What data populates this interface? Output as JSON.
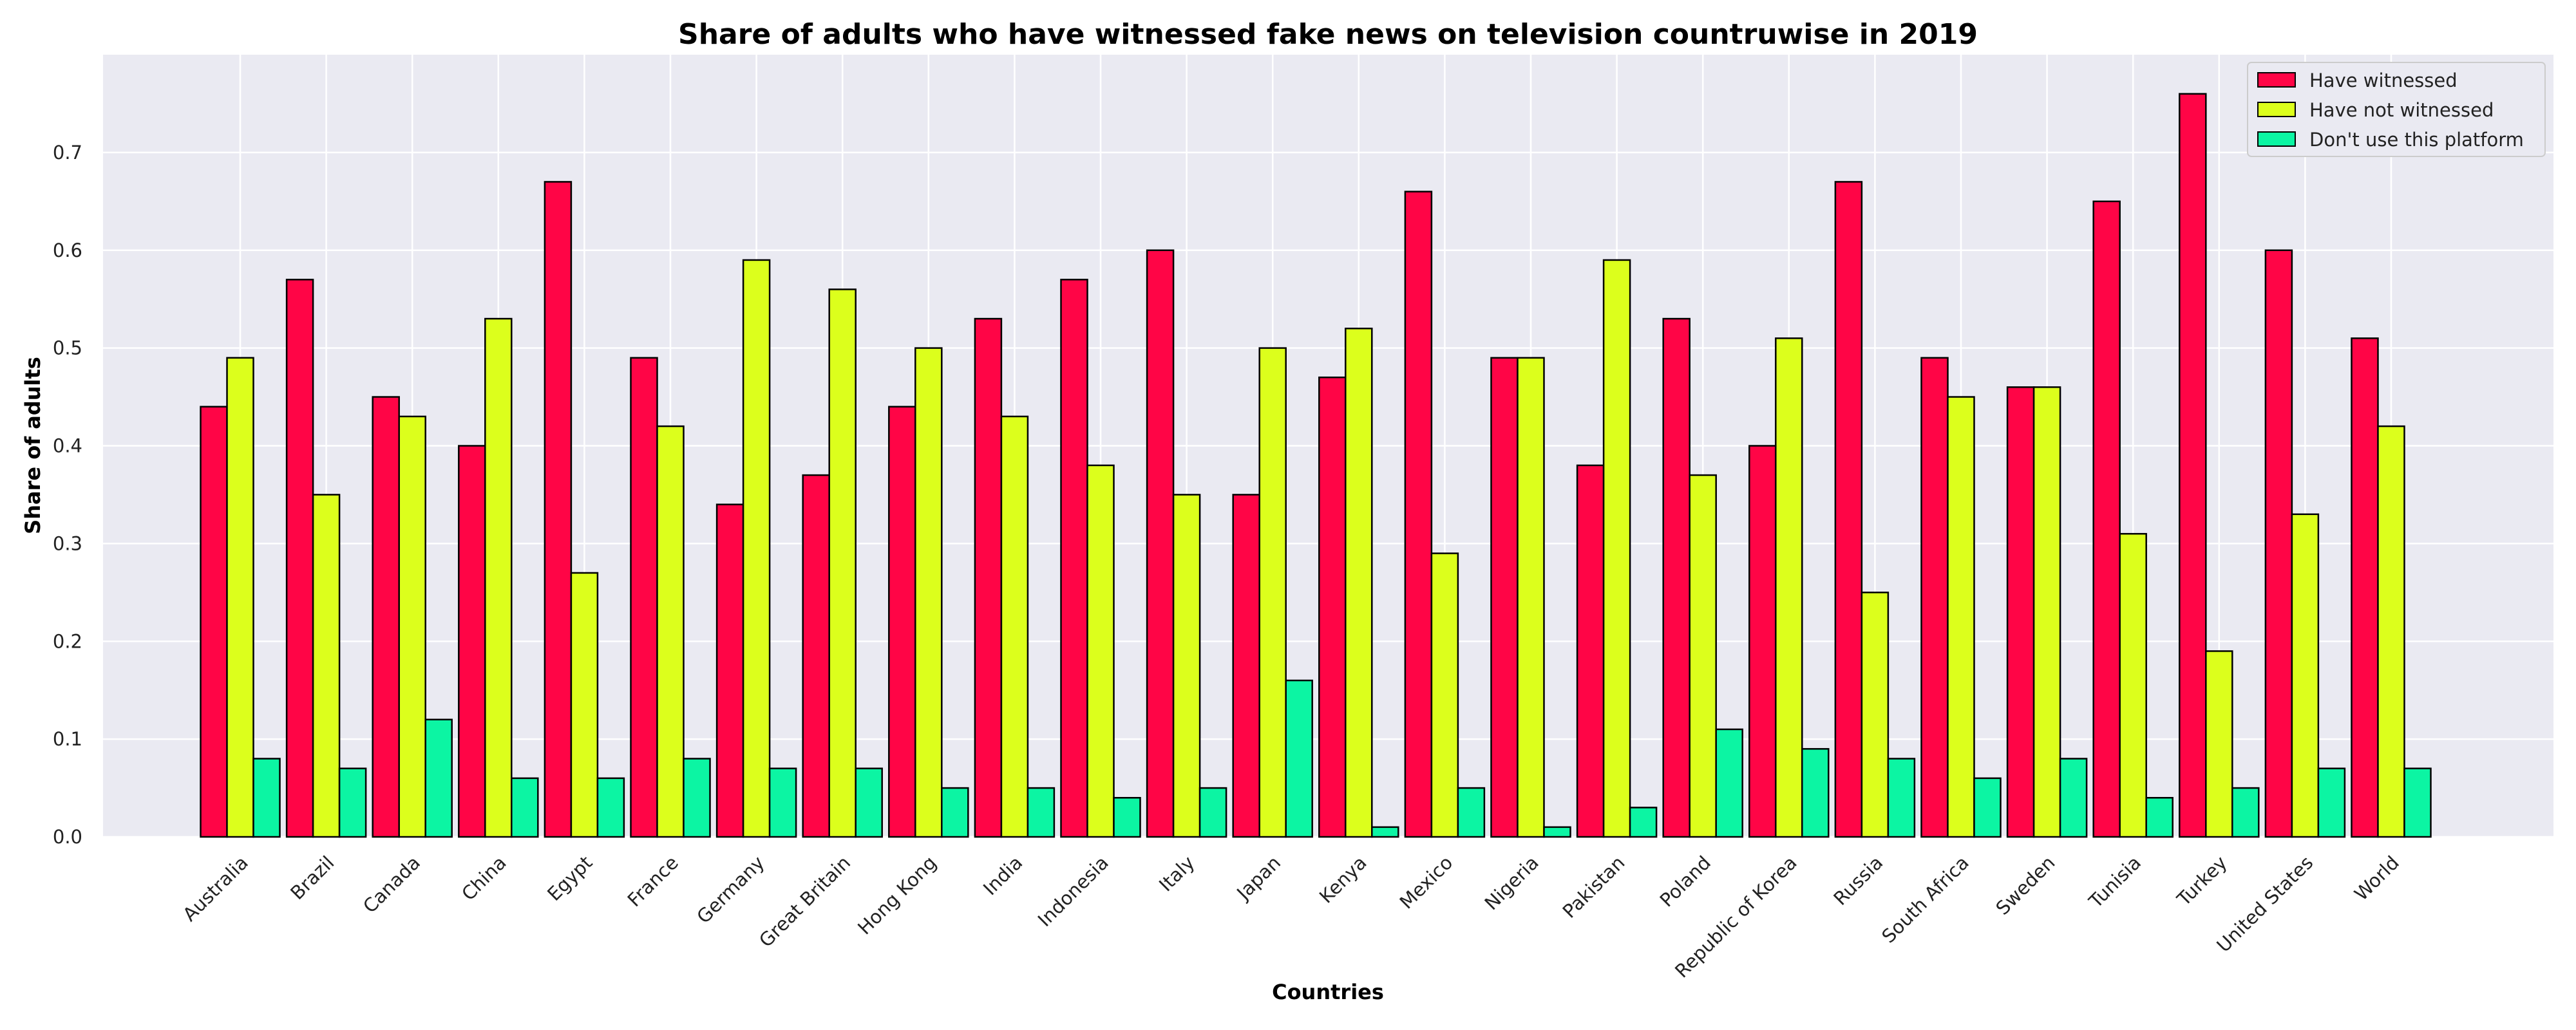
{
  "chart_data": {
    "type": "bar",
    "title": "Share of adults who have witnessed fake news on television countruwise in 2019",
    "xlabel": "Countries",
    "ylabel": "Share of adults",
    "ylim": [
      0,
      0.8
    ],
    "yticks": [
      "0.0",
      "0.1",
      "0.2",
      "0.3",
      "0.4",
      "0.5",
      "0.6",
      "0.7"
    ],
    "grid": true,
    "legend_position": "top-right",
    "categories": [
      "Australia",
      "Brazil",
      "Canada",
      "China",
      "Egypt",
      "France",
      "Germany",
      "Great Britain",
      "Hong Kong",
      "India",
      "Indonesia",
      "Italy",
      "Japan",
      "Kenya",
      "Mexico",
      "Nigeria",
      "Pakistan",
      "Poland",
      "Republic of Korea",
      "Russia",
      "South Africa",
      "Sweden",
      "Tunisia",
      "Turkey",
      "United States",
      "World"
    ],
    "series": [
      {
        "name": "Have witnessed",
        "color": "#ff0546",
        "values": [
          0.44,
          0.57,
          0.45,
          0.4,
          0.67,
          0.49,
          0.34,
          0.37,
          0.44,
          0.53,
          0.57,
          0.6,
          0.35,
          0.47,
          0.66,
          0.49,
          0.38,
          0.53,
          0.4,
          0.67,
          0.49,
          0.46,
          0.65,
          0.76,
          0.6,
          0.51
        ]
      },
      {
        "name": "Have not witnessed",
        "color": "#dcff1c",
        "values": [
          0.49,
          0.35,
          0.43,
          0.53,
          0.27,
          0.42,
          0.59,
          0.56,
          0.5,
          0.43,
          0.38,
          0.35,
          0.5,
          0.52,
          0.29,
          0.49,
          0.59,
          0.37,
          0.51,
          0.25,
          0.45,
          0.46,
          0.31,
          0.19,
          0.33,
          0.42
        ]
      },
      {
        "name": "Don't use this platform",
        "color": "#0cf5a3",
        "values": [
          0.08,
          0.07,
          0.12,
          0.06,
          0.06,
          0.08,
          0.07,
          0.07,
          0.05,
          0.05,
          0.04,
          0.05,
          0.16,
          0.01,
          0.05,
          0.01,
          0.03,
          0.11,
          0.09,
          0.08,
          0.06,
          0.08,
          0.04,
          0.05,
          0.07,
          0.07
        ]
      }
    ],
    "colors": {
      "plot_background": "#eaeaf2",
      "grid": "#ffffff",
      "bar_edge": "#000000"
    }
  }
}
